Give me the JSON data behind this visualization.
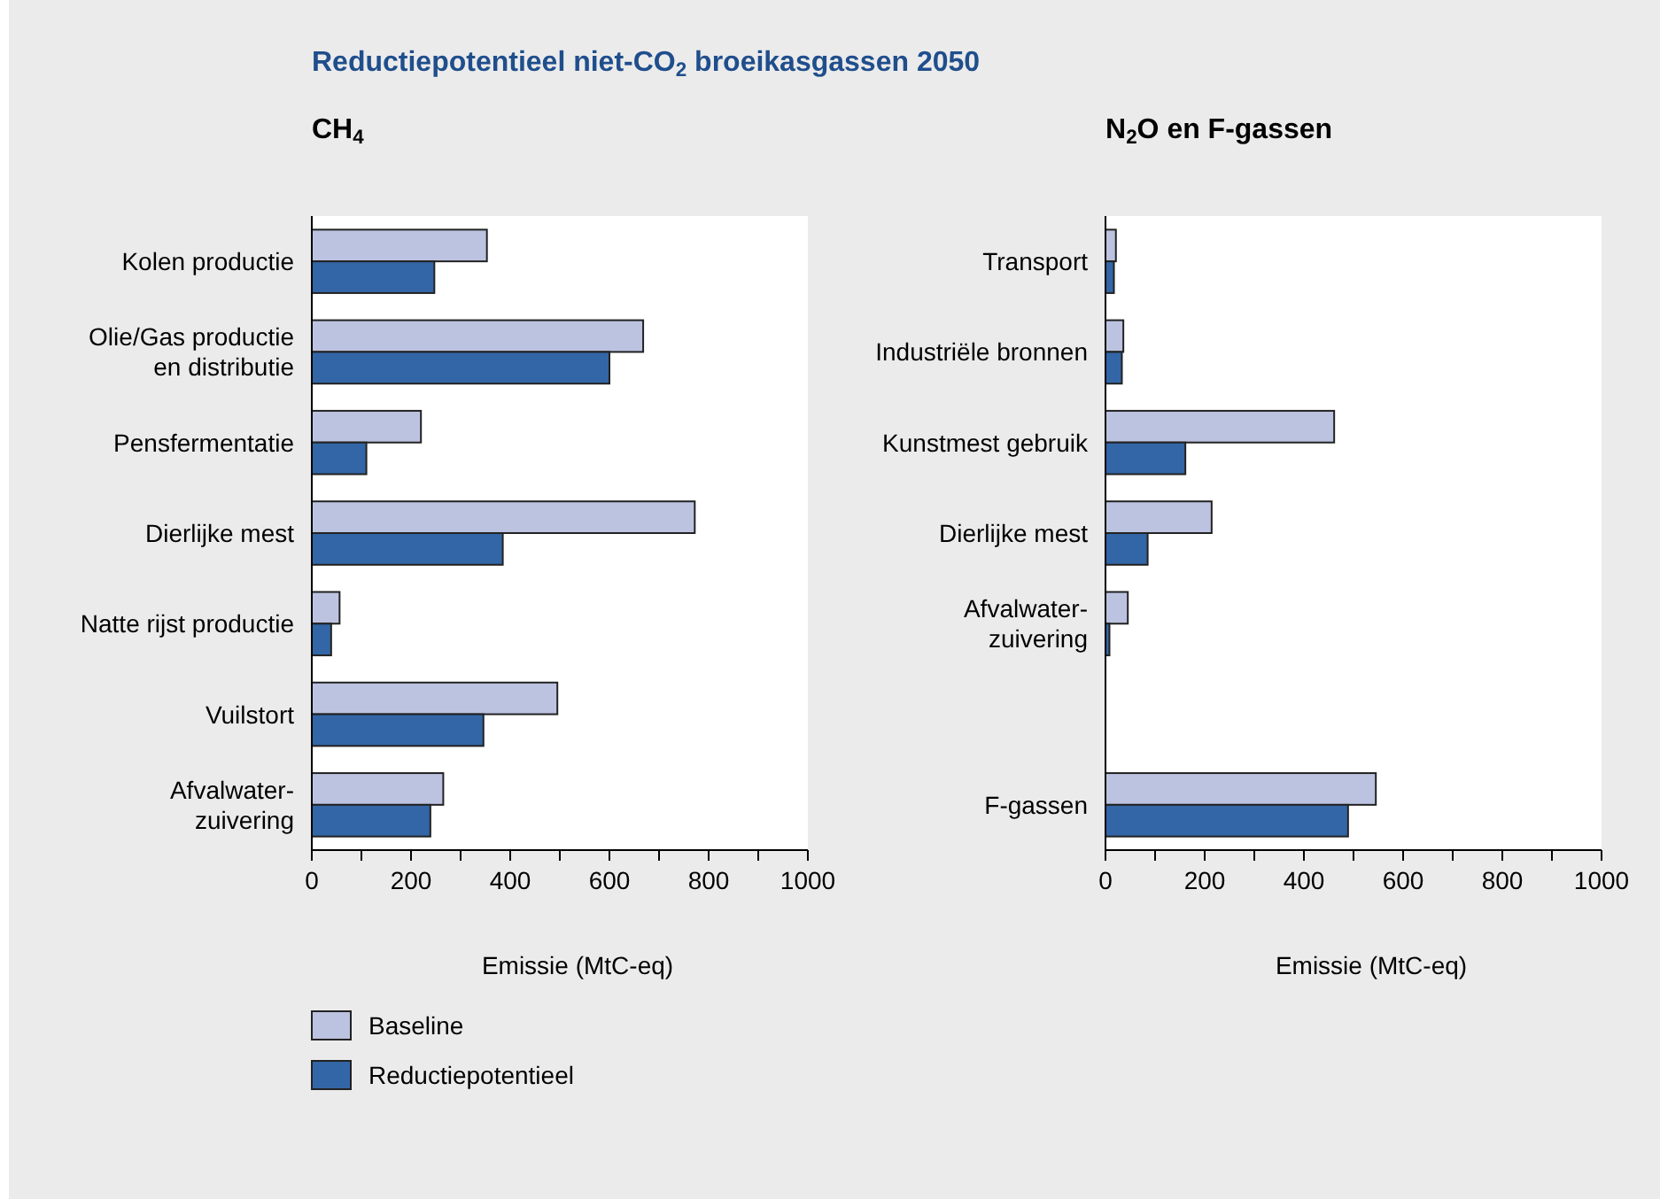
{
  "chart_data": [
    {
      "type": "bar",
      "orientation": "horizontal",
      "title": "Reductiepotentieel niet-CO$_{2}$ broeikasgassen 2050",
      "subtitle": "CH$_{4}$",
      "xlabel": "Emissie (MtC-eq)",
      "categories": [
        "Kolen productie",
        "Olie/Gas productie\nen distributie",
        "Pensfermentatie",
        "Dierlijke mest",
        "Natte rijst productie",
        "Vuilstort",
        "Afvalwater-\nzuivering"
      ],
      "series": [
        {
          "name": "Baseline",
          "color": "#bcc3e0",
          "values": [
            353,
            668,
            220,
            772,
            56,
            495,
            265
          ]
        },
        {
          "name": "Reductiepotentieel",
          "color": "#3366a6",
          "values": [
            247,
            600,
            110,
            385,
            39,
            346,
            239
          ]
        }
      ],
      "xlim": [
        0,
        1000
      ],
      "xticks": [
        0,
        {
          "value": 100,
          "label": null
        },
        200,
        {
          "value": 300,
          "label": null
        },
        400,
        {
          "value": 500,
          "label": null
        },
        600,
        {
          "value": 700,
          "label": null
        },
        800,
        {
          "value": 900,
          "label": null
        },
        1000
      ],
      "grid": false,
      "legend": "bottom"
    },
    {
      "type": "bar",
      "orientation": "horizontal",
      "title": "N$_{2}$O en F-gassen",
      "xlabel": "Emissie (MtC-eq)",
      "categories": [
        "Transport",
        "Industriële bronnen",
        "Kunstmest gebruik",
        "Dierlijke mest",
        "Afvalwater-\nzuivering",
        null,
        "F-gassen"
      ],
      "series": [
        {
          "color": "#bcc3e0",
          "values": [
            21,
            36,
            461,
            214,
            45,
            null,
            545
          ]
        },
        {
          "color": "#3366a6",
          "values": [
            17,
            33,
            161,
            85,
            8,
            null,
            489
          ]
        }
      ],
      "xlim": [
        0,
        1000
      ],
      "xticks": [
        0,
        {
          "value": 100,
          "label": null
        },
        200,
        {
          "value": 300,
          "label": null
        },
        400,
        {
          "value": 500,
          "label": null
        },
        600,
        {
          "value": 700,
          "label": null
        },
        800,
        {
          "value": 900,
          "label": null
        },
        1000
      ],
      "grid": false,
      "legend": false
    }
  ]
}
